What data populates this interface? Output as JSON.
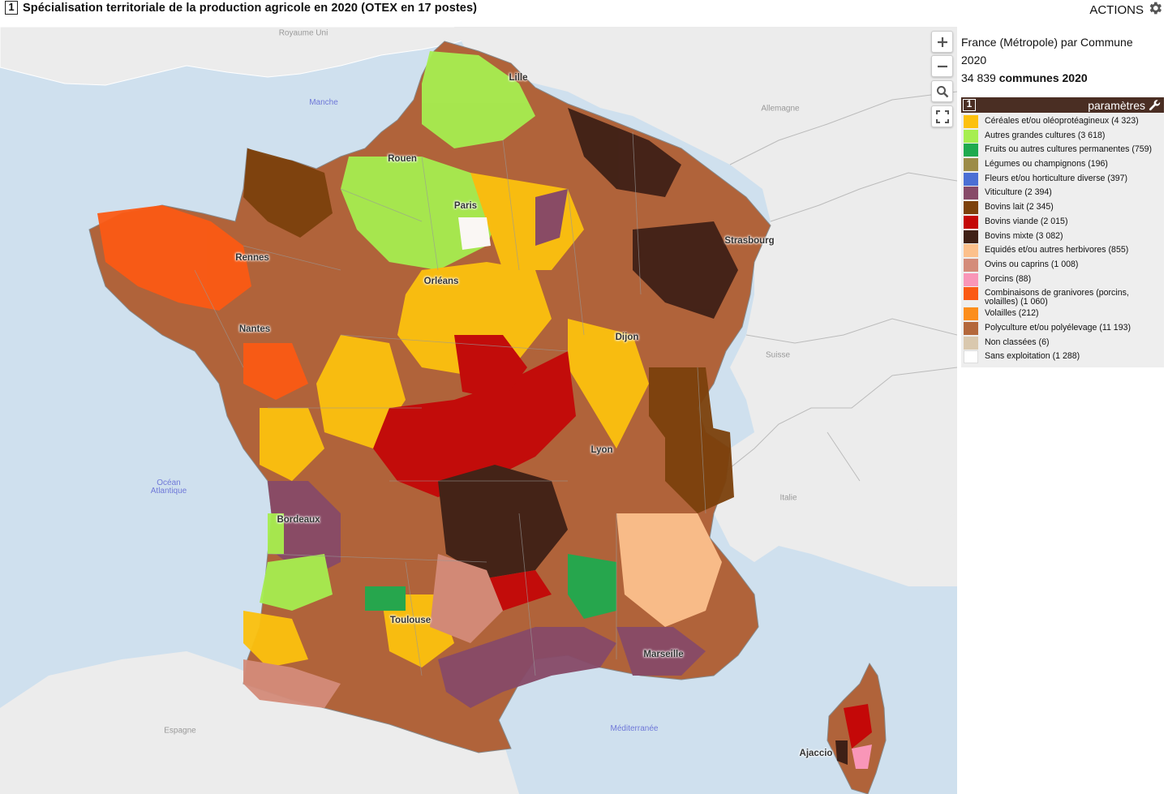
{
  "header": {
    "index": "1",
    "title": "Spécialisation territoriale de la production agricole en 2020 (OTEX en 17 postes)",
    "actions_label": "ACTIONS"
  },
  "scope": {
    "line1": "France (Métropole) par Commune",
    "line2": "2020",
    "count": "34 839",
    "count_suffix": "communes 2020"
  },
  "legend": {
    "index": "1",
    "params_label": "paramètres",
    "items": [
      {
        "label": "Céréales et/ou oléoprotéagineux (4 323)",
        "color": "#fcc10e"
      },
      {
        "label": "Autres grandes cultures (3 618)",
        "color": "#a6ee50"
      },
      {
        "label": "Fruits ou autres cultures permanentes (759)",
        "color": "#1faa4f"
      },
      {
        "label": "Légumes ou champignons (196)",
        "color": "#9c8c48"
      },
      {
        "label": "Fleurs et/ou horticulture diverse (397)",
        "color": "#4b6fd4"
      },
      {
        "label": "Viticulture (2 394)",
        "color": "#874a68"
      },
      {
        "label": "Bovins lait (2 345)",
        "color": "#7c410c"
      },
      {
        "label": "Bovins viande (2 015)",
        "color": "#c40808"
      },
      {
        "label": "Bovins mixte (3 082)",
        "color": "#3f2016"
      },
      {
        "label": "Equidés et/ou autres herbivores (855)",
        "color": "#fcc08c"
      },
      {
        "label": "Ovins ou caprins (1 008)",
        "color": "#d48c7a"
      },
      {
        "label": "Porcins (88)",
        "color": "#f996b8"
      },
      {
        "label": "Combinaisons de granivores (porcins, volailles) (1 060)",
        "color": "#fb5a14"
      },
      {
        "label": "Volailles (212)",
        "color": "#fc8e1c"
      },
      {
        "label": "Polyculture et/ou polyélevage (11 193)",
        "color": "#b4683c"
      },
      {
        "label": "Non classées (6)",
        "color": "#d9c8ae"
      },
      {
        "label": "Sans exploitation (1 288)",
        "color": "#ffffff"
      }
    ]
  },
  "map": {
    "countries": [
      "Royaume Uni",
      "Allemagne",
      "Suisse",
      "Italie",
      "Espagne"
    ],
    "seas": [
      "Manche",
      "Océan\nAtlantique",
      "Méditerranée"
    ],
    "cities": [
      "Lille",
      "Rouen",
      "Paris",
      "Strasbourg",
      "Rennes",
      "Orléans",
      "Nantes",
      "Dijon",
      "Lyon",
      "Bordeaux",
      "Toulouse",
      "Marseille",
      "Ajaccio"
    ],
    "controls": [
      "zoom-in",
      "zoom-out",
      "search",
      "fullscreen"
    ]
  }
}
